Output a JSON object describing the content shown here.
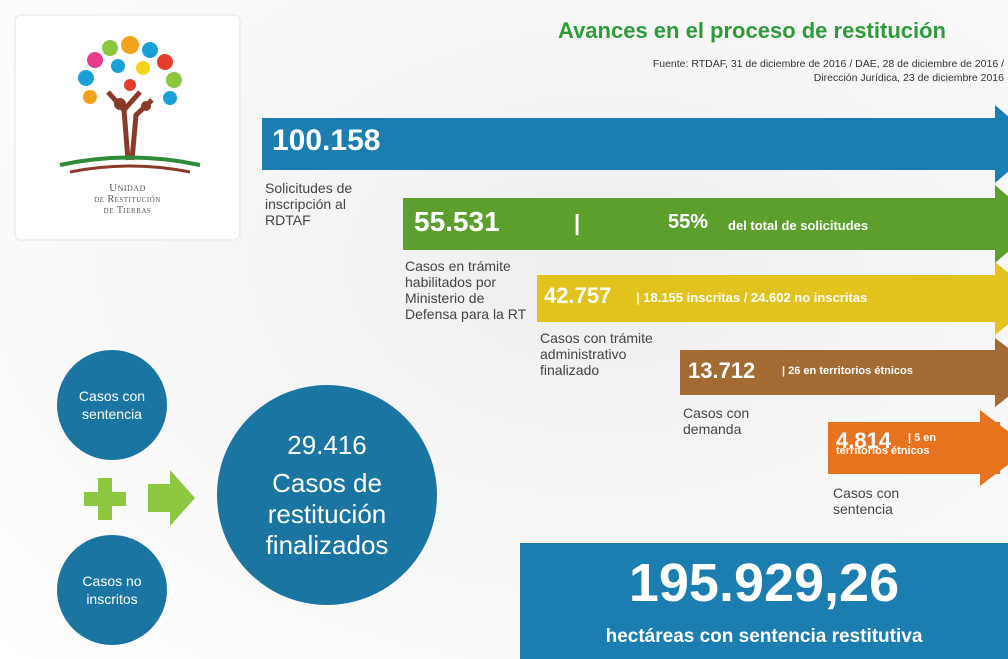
{
  "header": {
    "title": "Avances en el proceso de restitución",
    "source": [
      "Fuente: RTDAF, 31 de diciembre de 2016 / DAE, 28 de diciembre de 2016 /",
      "Dirección Jurídica, 23 de diciembre 2016"
    ]
  },
  "logo": {
    "name": [
      "Unidad",
      "de Restitución",
      "de Tierras"
    ]
  },
  "stages": [
    {
      "value": "100.158",
      "label": "Solicitudes de inscripción al RDTAF"
    },
    {
      "value": "55.531",
      "separator": "|",
      "percent": "55%",
      "detail": "del total de solicitudes",
      "label": "Casos en trámite habilitados por Ministerio de Defensa para la RT"
    },
    {
      "value": "42.757",
      "detail": "| 18.155 inscritas / 24.602 no inscritas",
      "label": "Casos con trámite administrativo finalizado"
    },
    {
      "value": "13.712",
      "detail": "| 26 en territorios étnicos",
      "label": "Casos con demanda"
    },
    {
      "value": "4.814",
      "detail": "| 5 en territorios étnicos",
      "label": "Casos con sentencia"
    }
  ],
  "summary": {
    "circles": [
      "Casos con sentencia",
      "Casos no inscritos"
    ],
    "total": "29.416",
    "total_label": "Casos de restitución finalizados"
  },
  "hectares": {
    "value": "195.929,26",
    "label": "hectáreas con sentencia restitutiva"
  }
}
